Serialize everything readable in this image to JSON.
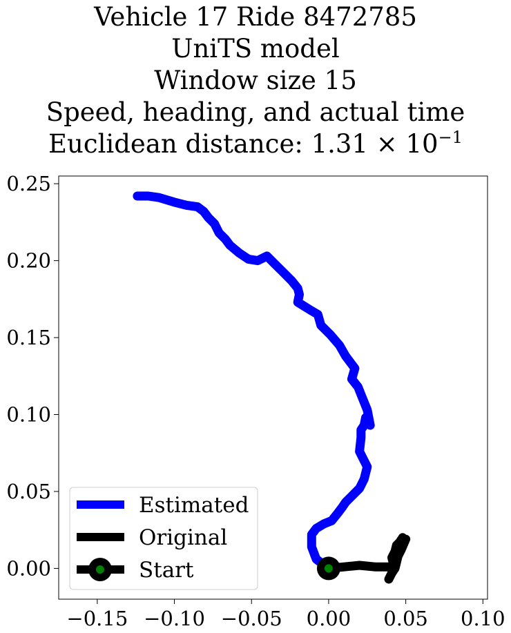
{
  "chart_data": {
    "type": "line",
    "title_lines": [
      "Vehicle 17 Ride 8472785",
      "UniTS model",
      "Window size 15",
      "Speed, heading, and actual time"
    ],
    "distance_prefix": "Euclidean distance: 1.31 × 10",
    "distance_exponent": "−1",
    "xlabel": "",
    "ylabel": "",
    "xlim": [
      -0.175,
      0.103
    ],
    "ylim": [
      -0.02,
      0.255
    ],
    "xticks": [
      -0.15,
      -0.1,
      -0.05,
      0.0,
      0.05,
      0.1
    ],
    "xtick_labels": [
      "−0.15",
      "−0.10",
      "−0.05",
      "0.00",
      "0.05",
      "0.10"
    ],
    "yticks": [
      0.0,
      0.05,
      0.1,
      0.15,
      0.2,
      0.25
    ],
    "ytick_labels": [
      "0.00",
      "0.05",
      "0.10",
      "0.15",
      "0.20",
      "0.25"
    ],
    "grid": false,
    "legend_position": "lower-left",
    "series": [
      {
        "name": "Estimated",
        "color": "#0000ff",
        "x": [
          0.0,
          -0.008,
          -0.011,
          -0.011,
          -0.008,
          -0.003,
          0.002,
          0.006,
          0.009,
          0.011,
          0.015,
          0.02,
          0.023,
          0.025,
          0.02,
          0.021,
          0.021,
          0.023,
          0.024,
          0.027,
          0.025,
          0.021,
          0.019,
          0.015,
          0.017,
          0.011,
          0.007,
          0.001,
          -0.005,
          -0.007,
          -0.012,
          -0.02,
          -0.019,
          -0.02,
          -0.024,
          -0.03,
          -0.035,
          -0.04,
          -0.046,
          -0.052,
          -0.058,
          -0.064,
          -0.067,
          -0.071,
          -0.074,
          -0.078,
          -0.081,
          -0.085,
          -0.092,
          -0.1,
          -0.11,
          -0.117,
          -0.124
        ],
        "y": [
          0.0,
          0.006,
          0.014,
          0.022,
          0.026,
          0.029,
          0.031,
          0.036,
          0.04,
          0.043,
          0.047,
          0.052,
          0.058,
          0.066,
          0.076,
          0.085,
          0.09,
          0.093,
          0.098,
          0.093,
          0.103,
          0.113,
          0.118,
          0.123,
          0.13,
          0.138,
          0.145,
          0.152,
          0.158,
          0.165,
          0.168,
          0.173,
          0.178,
          0.182,
          0.187,
          0.193,
          0.198,
          0.203,
          0.2,
          0.201,
          0.205,
          0.21,
          0.214,
          0.218,
          0.224,
          0.228,
          0.232,
          0.235,
          0.236,
          0.238,
          0.241,
          0.242,
          0.242
        ]
      },
      {
        "name": "Original",
        "color": "#000000",
        "x": [
          0.0,
          0.01,
          0.02,
          0.03,
          0.04,
          0.042,
          0.041,
          0.043,
          0.044,
          0.046,
          0.048,
          0.049,
          0.05,
          0.047,
          0.045,
          0.044,
          0.043,
          0.041,
          0.039
        ],
        "y": [
          0.0,
          0.001,
          0.002,
          0.001,
          0.001,
          0.003,
          0.007,
          0.011,
          0.015,
          0.017,
          0.02,
          0.018,
          0.019,
          0.012,
          0.008,
          0.004,
          0.0,
          -0.003,
          -0.007
        ]
      }
    ],
    "start_marker": {
      "name": "Start",
      "x": 0.0,
      "y": 0.0,
      "outer_color": "#000000",
      "inner_color": "#008000"
    }
  }
}
